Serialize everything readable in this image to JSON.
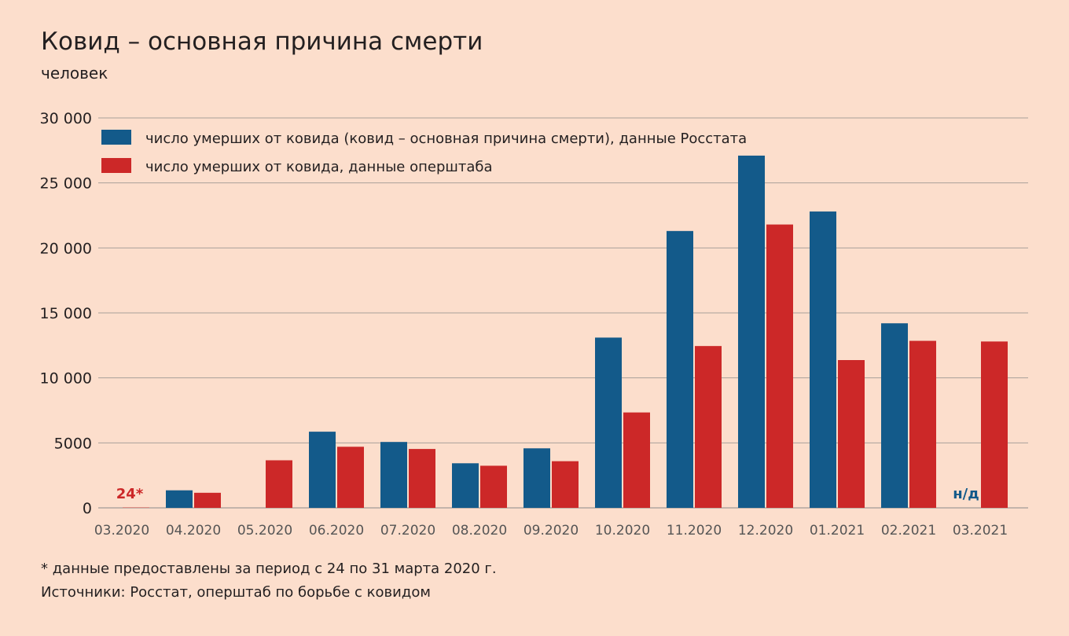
{
  "chart_data": {
    "type": "bar",
    "title": "Ковид – основная причина смерти",
    "subtitle": "человек",
    "categories": [
      "03.2020",
      "04.2020",
      "05.2020",
      "06.2020",
      "07.2020",
      "08.2020",
      "09.2020",
      "10.2020",
      "11.2020",
      "12.2020",
      "01.2021",
      "02.2021",
      "03.2021"
    ],
    "series": [
      {
        "name": "число умерших от ковида (ковид – основная причина смерти), данные Росстата",
        "color": "#135a8a",
        "values": [
          null,
          1350,
          null,
          5860,
          5070,
          3430,
          4580,
          13100,
          21300,
          27100,
          22800,
          14200,
          null
        ]
      },
      {
        "name": "число умерших от ковида, данные оперштаба",
        "color": "#cc2828",
        "values": [
          24,
          1160,
          3660,
          4700,
          4530,
          3240,
          3590,
          7340,
          12450,
          21800,
          11370,
          12850,
          12800
        ]
      }
    ],
    "ylim": [
      0,
      30000
    ],
    "yticks": [
      0,
      5000,
      10000,
      15000,
      20000,
      25000,
      30000
    ],
    "ytick_labels": [
      "0",
      "5000",
      "10 000",
      "15 000",
      "20 000",
      "25 000",
      "30 000"
    ],
    "grid": true,
    "legend_position": "top-left",
    "annotations": [
      {
        "category": "03.2020",
        "text": "24*",
        "color": "#cc2828"
      },
      {
        "category": "03.2021",
        "text": "н/д",
        "color": "#135a8a"
      }
    ]
  },
  "footnote": "* данные предоставлены за период с 24 по 31 марта 2020 г.",
  "source": "Источники: Росстат, оперштаб по борьбе с ковидом"
}
